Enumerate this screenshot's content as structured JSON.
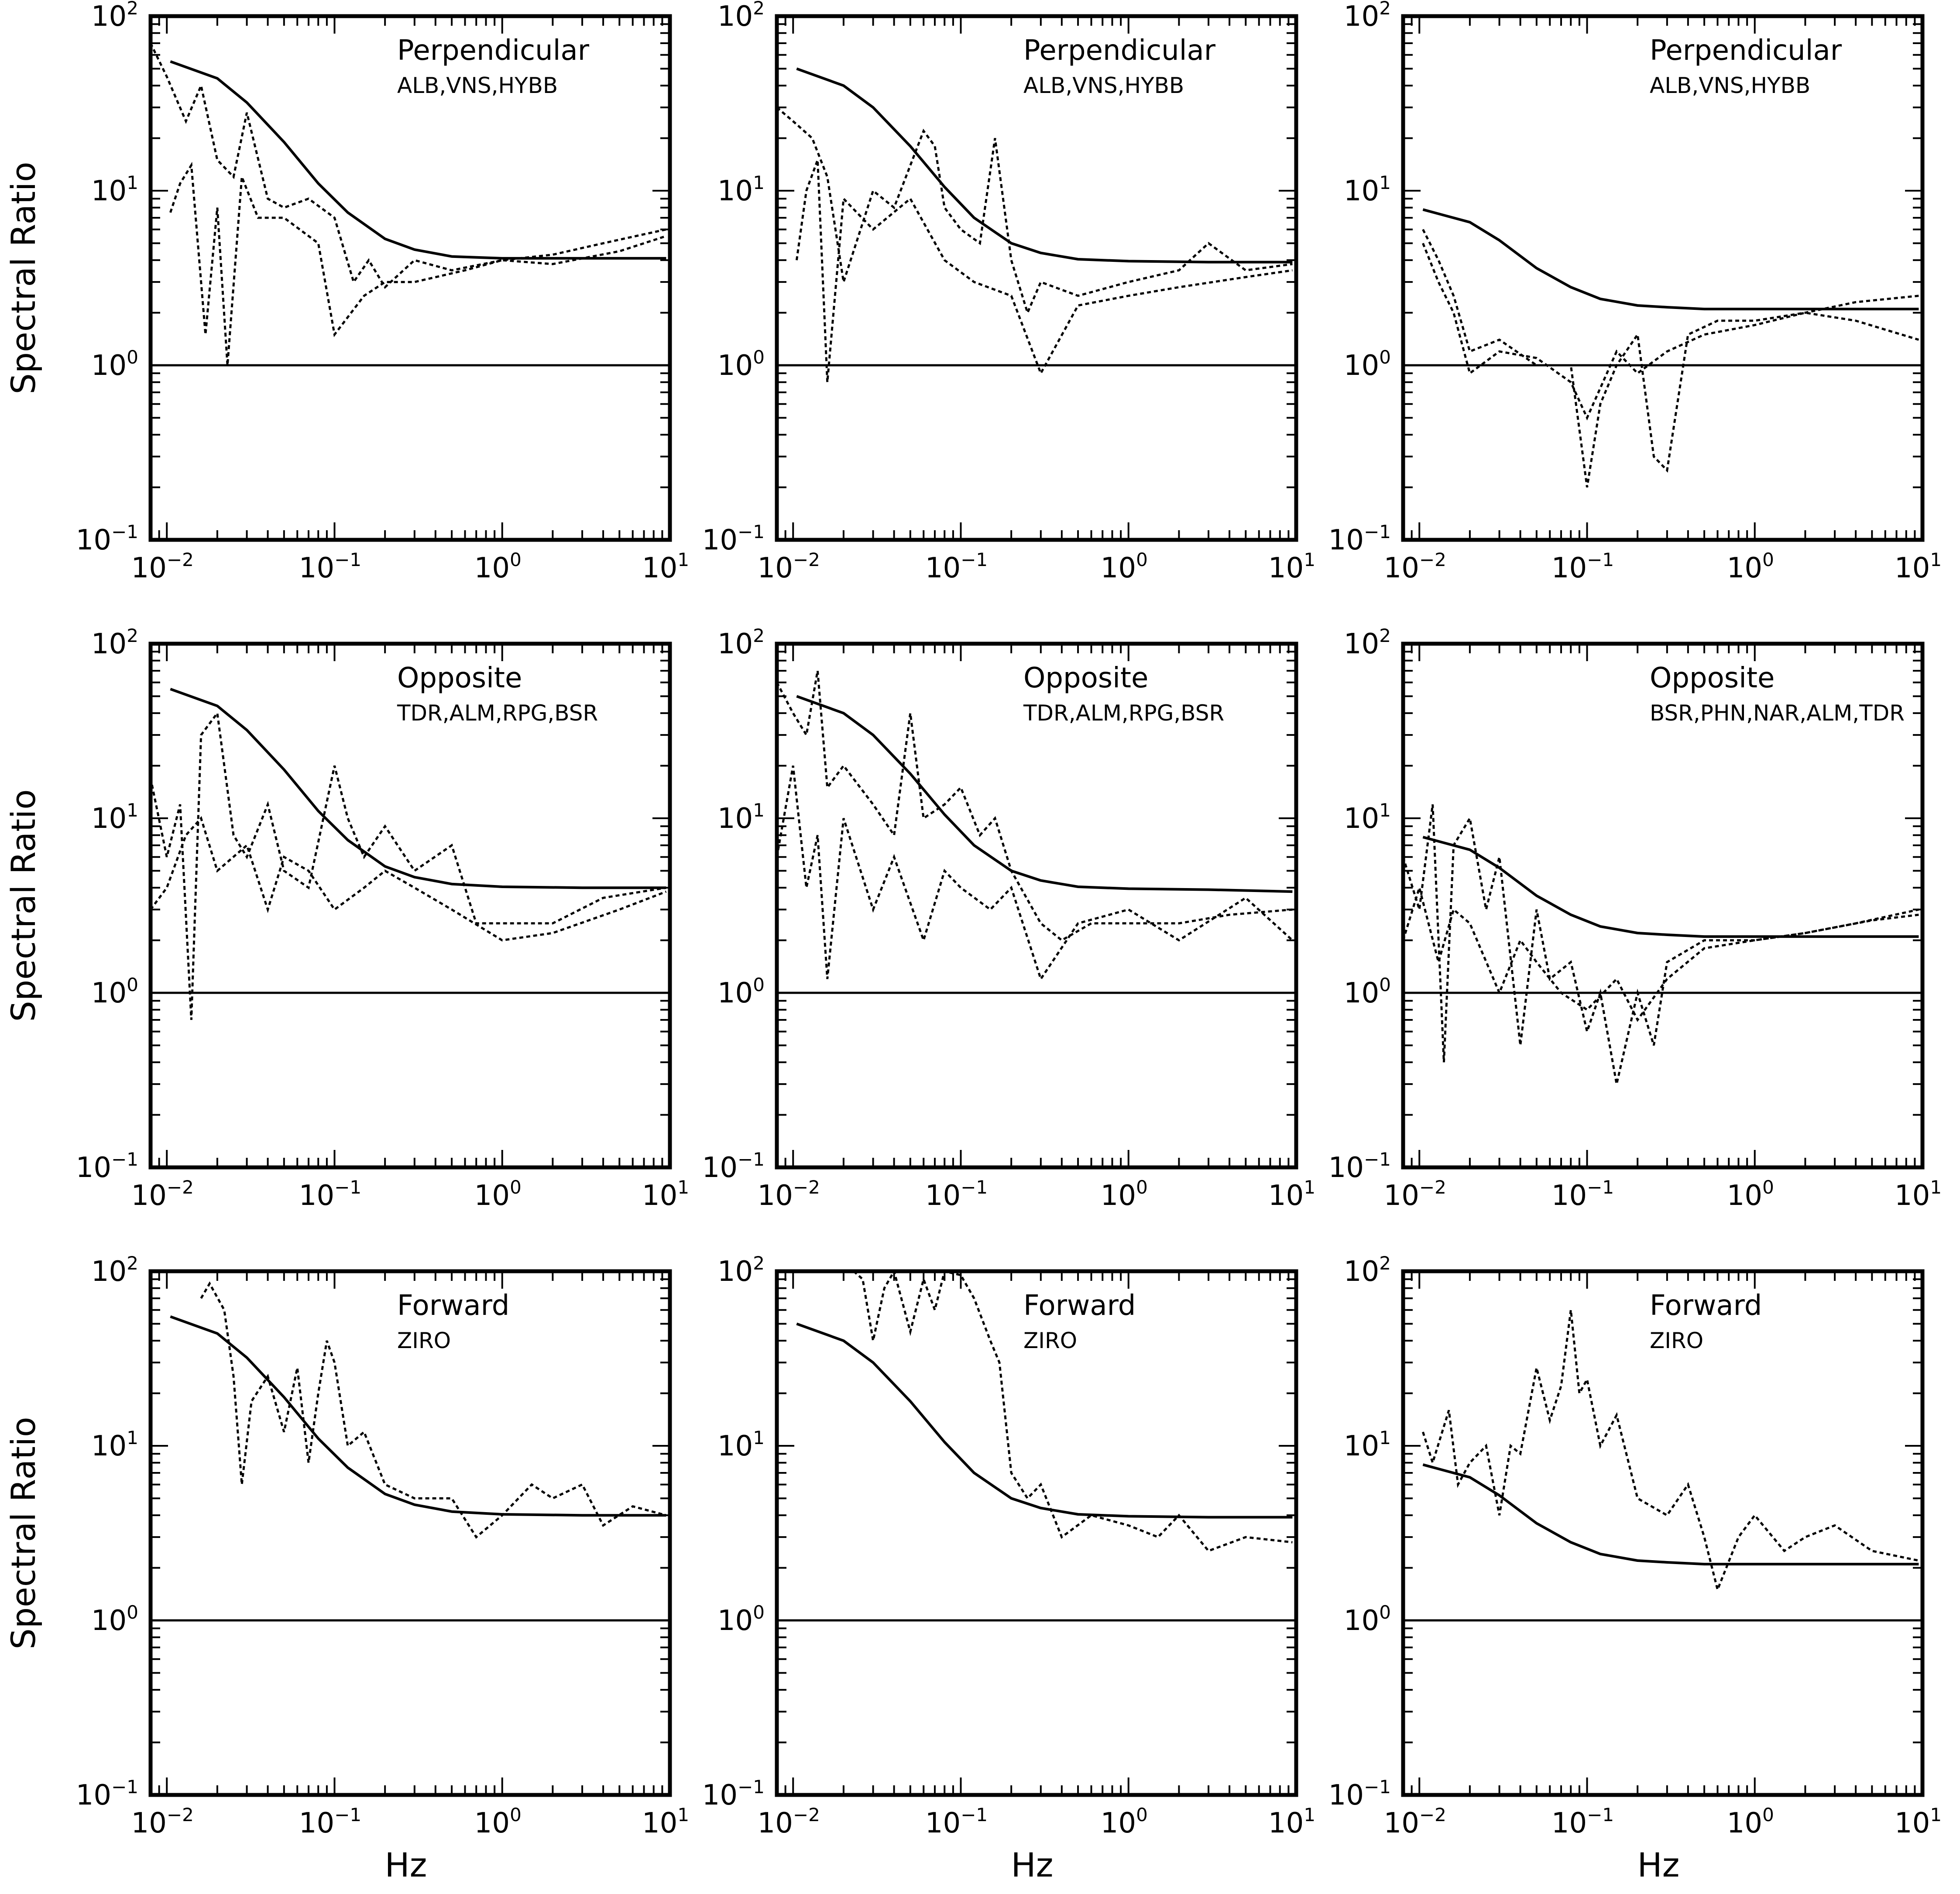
{
  "axis_labels": {
    "x": "Hz",
    "y": "Spectral Ratio"
  },
  "y_tick_labels": [
    {
      "base": "10",
      "exp": "2"
    },
    {
      "base": "10",
      "exp": "1"
    },
    {
      "base": "10",
      "exp": "0"
    },
    {
      "base": "10",
      "exp": "−1"
    }
  ],
  "x_tick_labels": [
    {
      "base": "10",
      "exp": "−2"
    },
    {
      "base": "10",
      "exp": "−1"
    },
    {
      "base": "10",
      "exp": "0"
    },
    {
      "base": "10",
      "exp": "1"
    }
  ],
  "chart_data": [
    {
      "type": "line",
      "panel": "row1-col1",
      "xscale": "log",
      "yscale": "log",
      "xlim": [
        0.008,
        10
      ],
      "ylim": [
        0.1,
        100
      ],
      "annotation": "Perpendicular",
      "stations": "ALB,VNS,HYBB",
      "model_curve": {
        "x": [
          0.0105,
          0.02,
          0.03,
          0.05,
          0.08,
          0.12,
          0.2,
          0.3,
          0.5,
          1,
          3,
          9.5
        ],
        "y": [
          55,
          44,
          32,
          19,
          11,
          7.5,
          5.3,
          4.6,
          4.2,
          4.1,
          4.1,
          4.1
        ]
      },
      "reference_line": 1,
      "series": [
        {
          "name": "",
          "x": [
            0.008,
            0.01,
            0.013,
            0.016,
            0.02,
            0.025,
            0.03,
            0.04,
            0.05,
            0.07,
            0.1,
            0.13,
            0.16,
            0.2,
            0.3,
            0.5,
            1,
            2,
            4,
            9.5
          ],
          "y": [
            70,
            45,
            25,
            40,
            15,
            12,
            28,
            9,
            8,
            9,
            7,
            3,
            4,
            2.8,
            4,
            3.5,
            4,
            4.3,
            5,
            6
          ]
        },
        {
          "name": "",
          "x": [
            0.0105,
            0.012,
            0.014,
            0.017,
            0.02,
            0.023,
            0.028,
            0.035,
            0.05,
            0.08,
            0.1,
            0.15,
            0.2,
            0.3,
            0.6,
            1,
            2,
            5,
            9.5
          ],
          "y": [
            7.5,
            11,
            14,
            1.5,
            8,
            1,
            12,
            7,
            7,
            5,
            1.5,
            2.5,
            3,
            3,
            3.5,
            4,
            3.8,
            4.5,
            5.5
          ]
        }
      ]
    },
    {
      "type": "line",
      "panel": "row1-col2",
      "xscale": "log",
      "yscale": "log",
      "xlim": [
        0.008,
        10
      ],
      "ylim": [
        0.1,
        100
      ],
      "annotation": "Perpendicular",
      "stations": "ALB,VNS,HYBB",
      "model_curve": {
        "x": [
          0.0105,
          0.02,
          0.03,
          0.05,
          0.08,
          0.12,
          0.2,
          0.3,
          0.5,
          1,
          3,
          9.5
        ],
        "y": [
          50,
          40,
          30,
          18,
          10.5,
          7,
          5,
          4.4,
          4.05,
          3.95,
          3.9,
          3.9
        ]
      },
      "reference_line": 1,
      "series": [
        {
          "name": "",
          "x": [
            0.008,
            0.01,
            0.013,
            0.016,
            0.02,
            0.03,
            0.04,
            0.06,
            0.07,
            0.08,
            0.1,
            0.13,
            0.16,
            0.2,
            0.25,
            0.3,
            0.5,
            1,
            2,
            3,
            5,
            9.5
          ],
          "y": [
            30,
            25,
            20,
            12,
            3,
            10,
            8,
            22,
            18,
            8,
            6,
            5,
            20,
            4,
            2,
            3,
            2.5,
            3,
            3.5,
            5,
            3.5,
            3.8
          ]
        },
        {
          "name": "",
          "x": [
            0.0105,
            0.012,
            0.014,
            0.016,
            0.02,
            0.03,
            0.05,
            0.08,
            0.12,
            0.2,
            0.3,
            0.5,
            1,
            2,
            5,
            9.5
          ],
          "y": [
            4,
            10,
            15,
            0.8,
            9,
            6,
            9,
            4,
            3,
            2.5,
            0.9,
            2.2,
            2.5,
            2.8,
            3.2,
            3.5
          ]
        }
      ]
    },
    {
      "type": "line",
      "panel": "row1-col3",
      "xscale": "log",
      "yscale": "log",
      "xlim": [
        0.008,
        10
      ],
      "ylim": [
        0.1,
        100
      ],
      "annotation": "Perpendicular",
      "stations": "ALB,VNS,HYBB",
      "model_curve": {
        "x": [
          0.0105,
          0.02,
          0.03,
          0.05,
          0.08,
          0.12,
          0.2,
          0.3,
          0.5,
          1,
          3,
          9.5
        ],
        "y": [
          7.8,
          6.6,
          5.2,
          3.6,
          2.8,
          2.4,
          2.2,
          2.15,
          2.1,
          2.1,
          2.1,
          2.1
        ]
      },
      "reference_line": 1,
      "series": [
        {
          "name": "",
          "x": [
            0.0105,
            0.013,
            0.016,
            0.02,
            0.03,
            0.05,
            0.08,
            0.1,
            0.12,
            0.15,
            0.2,
            0.25,
            0.3,
            0.4,
            0.6,
            1,
            2,
            4,
            9.5
          ],
          "y": [
            6,
            4,
            2.5,
            1.2,
            1.4,
            1,
            1,
            0.2,
            0.6,
            1,
            1.5,
            0.3,
            0.25,
            1.5,
            1.8,
            1.8,
            2,
            2.3,
            2.5
          ]
        },
        {
          "name": "",
          "x": [
            0.0105,
            0.013,
            0.016,
            0.02,
            0.03,
            0.05,
            0.08,
            0.1,
            0.15,
            0.2,
            0.3,
            0.5,
            1,
            2,
            4,
            9.5
          ],
          "y": [
            5,
            3,
            2,
            0.9,
            1.2,
            1.1,
            0.8,
            0.5,
            1.2,
            0.9,
            1.2,
            1.5,
            1.7,
            2.0,
            1.8,
            1.4
          ]
        }
      ]
    },
    {
      "type": "line",
      "panel": "row2-col1",
      "xscale": "log",
      "yscale": "log",
      "xlim": [
        0.008,
        10
      ],
      "ylim": [
        0.1,
        100
      ],
      "annotation": "Opposite",
      "stations": "TDR,ALM,RPG,BSR",
      "model_curve": {
        "x": [
          0.0105,
          0.02,
          0.03,
          0.05,
          0.08,
          0.12,
          0.2,
          0.3,
          0.5,
          1,
          3,
          9.5
        ],
        "y": [
          55,
          44,
          32,
          19,
          11,
          7.5,
          5.3,
          4.6,
          4.2,
          4.05,
          4.0,
          4.0
        ]
      },
      "reference_line": 1,
      "series": [
        {
          "name": "",
          "x": [
            0.008,
            0.01,
            0.012,
            0.014,
            0.016,
            0.02,
            0.025,
            0.03,
            0.04,
            0.05,
            0.07,
            0.1,
            0.12,
            0.15,
            0.2,
            0.3,
            0.5,
            0.7,
            1,
            2,
            4,
            9.5
          ],
          "y": [
            17,
            6,
            12,
            0.7,
            30,
            40,
            8,
            6,
            12,
            5,
            4,
            20,
            10,
            6,
            9,
            5,
            7,
            2.5,
            2.5,
            2.5,
            3.5,
            4
          ]
        },
        {
          "name": "",
          "x": [
            0.008,
            0.01,
            0.013,
            0.016,
            0.02,
            0.03,
            0.04,
            0.05,
            0.07,
            0.1,
            0.15,
            0.2,
            0.3,
            0.5,
            1,
            2,
            5,
            9.5
          ],
          "y": [
            3,
            4,
            8,
            10,
            5,
            7,
            3,
            6,
            5,
            3,
            4,
            5,
            4,
            3,
            2,
            2.2,
            3,
            3.8
          ]
        }
      ]
    },
    {
      "type": "line",
      "panel": "row2-col2",
      "xscale": "log",
      "yscale": "log",
      "xlim": [
        0.008,
        10
      ],
      "ylim": [
        0.1,
        100
      ],
      "annotation": "Opposite",
      "stations": "TDR,ALM,RPG,BSR",
      "model_curve": {
        "x": [
          0.0105,
          0.02,
          0.03,
          0.05,
          0.08,
          0.12,
          0.2,
          0.3,
          0.5,
          1,
          3,
          9.5
        ],
        "y": [
          50,
          40,
          30,
          18,
          10.5,
          7,
          5,
          4.4,
          4.05,
          3.95,
          3.9,
          3.8
        ]
      },
      "reference_line": 1,
      "series": [
        {
          "name": "",
          "x": [
            0.008,
            0.01,
            0.012,
            0.014,
            0.016,
            0.02,
            0.03,
            0.04,
            0.05,
            0.06,
            0.08,
            0.1,
            0.13,
            0.16,
            0.2,
            0.3,
            0.4,
            0.6,
            1,
            2,
            4,
            9.5
          ],
          "y": [
            60,
            40,
            30,
            70,
            15,
            20,
            12,
            8,
            40,
            10,
            12,
            15,
            8,
            10,
            5,
            2.5,
            2,
            2.5,
            2.5,
            2.5,
            2.8,
            3
          ]
        },
        {
          "name": "",
          "x": [
            0.008,
            0.01,
            0.012,
            0.014,
            0.016,
            0.02,
            0.03,
            0.04,
            0.06,
            0.08,
            0.1,
            0.15,
            0.2,
            0.3,
            0.5,
            1,
            2,
            5,
            9.5
          ],
          "y": [
            6,
            20,
            4,
            8,
            1.2,
            10,
            3,
            6,
            2,
            5,
            4,
            3,
            4,
            1.2,
            2.5,
            3,
            2,
            3.5,
            2
          ]
        }
      ]
    },
    {
      "type": "line",
      "panel": "row2-col3",
      "xscale": "log",
      "yscale": "log",
      "xlim": [
        0.008,
        10
      ],
      "ylim": [
        0.1,
        100
      ],
      "annotation": "Opposite",
      "stations": "BSR,PHN,NAR,ALM,TDR",
      "model_curve": {
        "x": [
          0.0105,
          0.02,
          0.03,
          0.05,
          0.08,
          0.12,
          0.2,
          0.3,
          0.5,
          1,
          3,
          9.5
        ],
        "y": [
          7.8,
          6.6,
          5.2,
          3.6,
          2.8,
          2.4,
          2.2,
          2.15,
          2.1,
          2.1,
          2.1,
          2.1
        ]
      },
      "reference_line": 1,
      "series": [
        {
          "name": "",
          "x": [
            0.008,
            0.01,
            0.012,
            0.014,
            0.016,
            0.02,
            0.025,
            0.03,
            0.04,
            0.05,
            0.06,
            0.08,
            0.1,
            0.12,
            0.15,
            0.2,
            0.25,
            0.3,
            0.5,
            1,
            2,
            4,
            9.5
          ],
          "y": [
            6,
            3,
            12,
            0.4,
            7,
            10,
            3,
            6,
            0.5,
            3,
            1.2,
            1.5,
            0.6,
            1,
            0.3,
            1,
            0.5,
            1.5,
            2,
            2,
            2.2,
            2.5,
            3
          ]
        },
        {
          "name": "",
          "x": [
            0.008,
            0.01,
            0.013,
            0.016,
            0.02,
            0.03,
            0.04,
            0.05,
            0.07,
            0.1,
            0.15,
            0.2,
            0.3,
            0.5,
            1,
            2,
            5,
            9.5
          ],
          "y": [
            2,
            4,
            1.5,
            3,
            2.5,
            1,
            2,
            1.5,
            1,
            0.8,
            1.2,
            0.7,
            1.2,
            1.8,
            2,
            2.2,
            2.6,
            2.8
          ]
        }
      ]
    },
    {
      "type": "line",
      "panel": "row3-col1",
      "xscale": "log",
      "yscale": "log",
      "xlim": [
        0.008,
        10
      ],
      "ylim": [
        0.1,
        100
      ],
      "annotation": "Forward",
      "stations": "ZIRO",
      "model_curve": {
        "x": [
          0.0105,
          0.02,
          0.03,
          0.05,
          0.08,
          0.12,
          0.2,
          0.3,
          0.5,
          1,
          3,
          9.5
        ],
        "y": [
          55,
          44,
          32,
          19,
          11,
          7.5,
          5.3,
          4.6,
          4.2,
          4.05,
          4.0,
          4.0
        ]
      },
      "reference_line": 1,
      "series": [
        {
          "name": "",
          "x": [
            0.016,
            0.018,
            0.022,
            0.025,
            0.028,
            0.032,
            0.04,
            0.05,
            0.06,
            0.07,
            0.08,
            0.09,
            0.1,
            0.12,
            0.15,
            0.2,
            0.3,
            0.5,
            0.7,
            1,
            1.5,
            2,
            3,
            4,
            6,
            9.5
          ],
          "y": [
            70,
            85,
            60,
            25,
            6,
            18,
            25,
            12,
            28,
            8,
            20,
            40,
            30,
            10,
            12,
            6,
            5,
            5,
            3,
            4,
            6,
            5,
            6,
            3.5,
            4.5,
            4
          ]
        }
      ]
    },
    {
      "type": "line",
      "panel": "row3-col2",
      "xscale": "log",
      "yscale": "log",
      "xlim": [
        0.008,
        10
      ],
      "ylim": [
        0.1,
        100
      ],
      "annotation": "Forward",
      "stations": "ZIRO",
      "model_curve": {
        "x": [
          0.0105,
          0.02,
          0.03,
          0.05,
          0.08,
          0.12,
          0.2,
          0.3,
          0.5,
          1,
          3,
          9.5
        ],
        "y": [
          50,
          40,
          30,
          18,
          10.5,
          7,
          5,
          4.4,
          4.05,
          3.95,
          3.9,
          3.9
        ]
      },
      "reference_line": 1,
      "series": [
        {
          "name": "",
          "x": [
            0.023,
            0.026,
            0.03,
            0.035,
            0.04,
            0.05,
            0.06,
            0.07,
            0.08,
            0.1,
            0.12,
            0.15,
            0.17,
            0.2,
            0.25,
            0.3,
            0.4,
            0.6,
            1,
            1.5,
            2,
            3,
            5,
            9.5
          ],
          "y": [
            100,
            90,
            40,
            80,
            100,
            45,
            90,
            60,
            100,
            95,
            70,
            40,
            30,
            7,
            5,
            6,
            3,
            4,
            3.5,
            3,
            4,
            2.5,
            3,
            2.8
          ]
        }
      ]
    },
    {
      "type": "line",
      "panel": "row3-col3",
      "xscale": "log",
      "yscale": "log",
      "xlim": [
        0.008,
        10
      ],
      "ylim": [
        0.1,
        100
      ],
      "annotation": "Forward",
      "stations": "ZIRO",
      "model_curve": {
        "x": [
          0.0105,
          0.02,
          0.03,
          0.05,
          0.08,
          0.12,
          0.2,
          0.3,
          0.5,
          1,
          3,
          9.5
        ],
        "y": [
          7.8,
          6.6,
          5.2,
          3.6,
          2.8,
          2.4,
          2.2,
          2.15,
          2.1,
          2.1,
          2.1,
          2.1
        ]
      },
      "reference_line": 1,
      "series": [
        {
          "name": "",
          "x": [
            0.0105,
            0.012,
            0.015,
            0.017,
            0.02,
            0.025,
            0.03,
            0.035,
            0.04,
            0.05,
            0.06,
            0.07,
            0.08,
            0.09,
            0.1,
            0.12,
            0.15,
            0.2,
            0.3,
            0.4,
            0.5,
            0.6,
            0.8,
            1,
            1.5,
            2,
            3,
            5,
            9.5
          ],
          "y": [
            12,
            8,
            16,
            6,
            8,
            10,
            4,
            10,
            9,
            28,
            14,
            22,
            60,
            20,
            24,
            10,
            15,
            5,
            4,
            6,
            3,
            1.5,
            3,
            4,
            2.5,
            3,
            3.5,
            2.5,
            2.2
          ]
        }
      ]
    }
  ]
}
